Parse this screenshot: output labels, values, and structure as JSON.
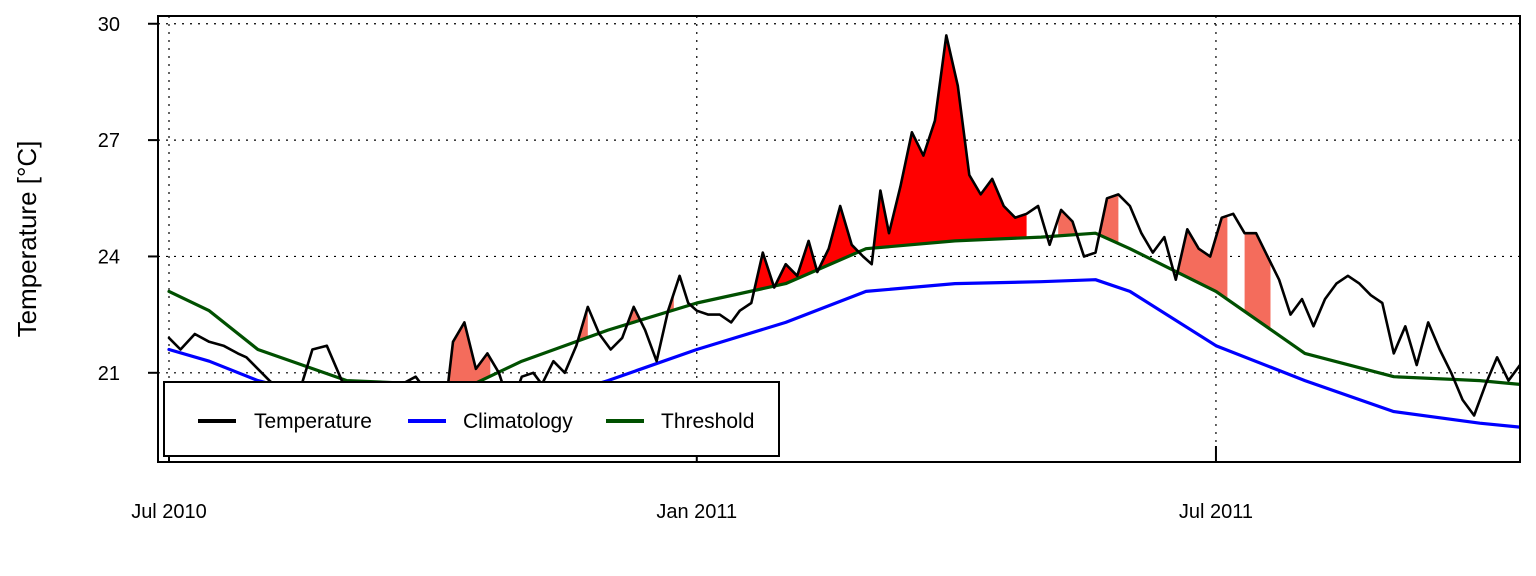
{
  "chart_data": {
    "type": "line",
    "title": "",
    "xlabel": "",
    "ylabel": "Temperature [°C]",
    "x_range": [
      "2010-07-01",
      "2011-10-15"
    ],
    "ylim": [
      18.7,
      30.2
    ],
    "y_ticks": [
      21,
      24,
      27,
      30
    ],
    "x_ticks": [
      {
        "date": "2010-07-01",
        "label": "Jul 2010"
      },
      {
        "date": "2011-01-01",
        "label": "Jan 2011"
      },
      {
        "date": "2011-07-01",
        "label": "Jul 2011"
      }
    ],
    "grid": true,
    "legend_position": "bottom-left",
    "colors": {
      "temperature": "#000000",
      "climatology": "#0000ff",
      "threshold": "#005000",
      "event_fill": "#f46c5c",
      "peak_event_fill": "#ff0000"
    },
    "series": [
      {
        "name": "Temperature",
        "key": "temperature",
        "x": [
          "2010-07-01",
          "2010-07-05",
          "2010-07-10",
          "2010-07-15",
          "2010-07-20",
          "2010-07-25",
          "2010-07-28",
          "2010-08-05",
          "2010-08-10",
          "2010-08-15",
          "2010-08-20",
          "2010-08-25",
          "2010-09-01",
          "2010-09-10",
          "2010-09-15",
          "2010-09-20",
          "2010-09-25",
          "2010-09-28",
          "2010-10-01",
          "2010-10-05",
          "2010-10-08",
          "2010-10-12",
          "2010-10-16",
          "2010-10-20",
          "2010-10-24",
          "2010-10-28",
          "2010-11-01",
          "2010-11-05",
          "2010-11-08",
          "2010-11-12",
          "2010-11-16",
          "2010-11-20",
          "2010-11-24",
          "2010-11-28",
          "2010-12-02",
          "2010-12-06",
          "2010-12-10",
          "2010-12-14",
          "2010-12-18",
          "2010-12-22",
          "2010-12-26",
          "2010-12-29",
          "2011-01-01",
          "2011-01-05",
          "2011-01-09",
          "2011-01-13",
          "2011-01-16",
          "2011-01-20",
          "2011-01-24",
          "2011-01-28",
          "2011-02-01",
          "2011-02-05",
          "2011-02-09",
          "2011-02-12",
          "2011-02-16",
          "2011-02-20",
          "2011-02-24",
          "2011-02-28",
          "2011-03-03",
          "2011-03-06",
          "2011-03-09",
          "2011-03-13",
          "2011-03-17",
          "2011-03-21",
          "2011-03-25",
          "2011-03-29",
          "2011-04-02",
          "2011-04-06",
          "2011-04-10",
          "2011-04-14",
          "2011-04-18",
          "2011-04-22",
          "2011-04-26",
          "2011-04-30",
          "2011-05-04",
          "2011-05-08",
          "2011-05-12",
          "2011-05-16",
          "2011-05-20",
          "2011-05-24",
          "2011-05-28",
          "2011-06-01",
          "2011-06-05",
          "2011-06-09",
          "2011-06-13",
          "2011-06-17",
          "2011-06-21",
          "2011-06-25",
          "2011-06-29",
          "2011-07-03",
          "2011-07-07",
          "2011-07-11",
          "2011-07-15",
          "2011-07-19",
          "2011-07-23",
          "2011-07-27",
          "2011-07-31",
          "2011-08-04",
          "2011-08-08",
          "2011-08-12",
          "2011-08-16",
          "2011-08-20",
          "2011-08-24",
          "2011-08-28",
          "2011-09-01",
          "2011-09-05",
          "2011-09-09",
          "2011-09-13",
          "2011-09-17",
          "2011-09-21",
          "2011-09-25",
          "2011-09-29",
          "2011-10-03",
          "2011-10-07",
          "2011-10-11",
          "2011-10-15"
        ],
        "values": [
          21.9,
          21.6,
          22.0,
          21.8,
          21.7,
          21.5,
          21.4,
          20.8,
          20.5,
          20.4,
          21.6,
          21.7,
          20.5,
          20.1,
          20.3,
          20.7,
          20.9,
          20.6,
          20.1,
          19.9,
          21.8,
          22.3,
          21.1,
          21.5,
          21.0,
          20.1,
          20.9,
          21.0,
          20.7,
          21.3,
          21.0,
          21.7,
          22.7,
          22.0,
          21.6,
          21.9,
          22.7,
          22.1,
          21.3,
          22.6,
          23.5,
          22.8,
          22.6,
          22.5,
          22.5,
          22.3,
          22.6,
          22.8,
          24.1,
          23.2,
          23.8,
          23.5,
          24.4,
          23.6,
          24.2,
          25.3,
          24.3,
          24.0,
          23.8,
          25.7,
          24.6,
          25.8,
          27.2,
          26.6,
          27.5,
          29.7,
          28.4,
          26.1,
          25.6,
          26.0,
          25.3,
          25.0,
          25.1,
          25.3,
          24.3,
          25.2,
          24.9,
          24.0,
          24.1,
          25.5,
          25.6,
          25.3,
          24.6,
          24.1,
          24.5,
          23.4,
          24.7,
          24.2,
          24.0,
          25.0,
          25.1,
          24.6,
          24.6,
          24.0,
          23.4,
          22.5,
          22.9,
          22.2,
          22.9,
          23.3,
          23.5,
          23.3,
          23.0,
          22.8,
          21.5,
          22.2,
          21.2,
          22.3,
          21.6,
          21.0,
          20.3,
          19.9,
          20.7,
          21.4,
          20.8,
          21.2
        ]
      },
      {
        "name": "Climatology",
        "key": "climatology",
        "x": [
          "2010-07-01",
          "2010-07-15",
          "2010-08-01",
          "2010-09-01",
          "2010-10-01",
          "2010-11-01",
          "2010-12-01",
          "2011-01-01",
          "2011-02-01",
          "2011-03-01",
          "2011-04-01",
          "2011-05-01",
          "2011-05-20",
          "2011-06-01",
          "2011-07-01",
          "2011-08-01",
          "2011-09-01",
          "2011-10-01",
          "2011-10-15"
        ],
        "values": [
          21.6,
          21.3,
          20.8,
          20.2,
          19.9,
          20.1,
          20.8,
          21.6,
          22.3,
          23.1,
          23.3,
          23.35,
          23.4,
          23.1,
          21.7,
          20.8,
          20.0,
          19.7,
          19.6
        ]
      },
      {
        "name": "Threshold",
        "key": "threshold",
        "x": [
          "2010-07-01",
          "2010-07-15",
          "2010-08-01",
          "2010-09-01",
          "2010-10-01",
          "2010-10-15",
          "2010-11-01",
          "2010-12-01",
          "2011-01-01",
          "2011-02-01",
          "2011-03-01",
          "2011-04-01",
          "2011-05-01",
          "2011-05-20",
          "2011-06-01",
          "2011-07-01",
          "2011-08-01",
          "2011-09-01",
          "2011-10-01",
          "2011-10-15"
        ],
        "values": [
          23.1,
          22.6,
          21.6,
          20.8,
          20.7,
          20.7,
          21.3,
          22.1,
          22.8,
          23.3,
          24.2,
          24.4,
          24.5,
          24.6,
          24.2,
          23.1,
          21.5,
          20.9,
          20.8,
          20.7
        ]
      }
    ],
    "events": [
      {
        "start": "2010-10-06",
        "end": "2010-10-21",
        "severity": "moderate"
      },
      {
        "start": "2010-10-27",
        "end": "2010-11-13",
        "severity": "moderate"
      },
      {
        "start": "2010-11-16",
        "end": "2010-11-24",
        "severity": "moderate"
      },
      {
        "start": "2010-11-28",
        "end": "2010-12-03",
        "severity": "moderate"
      },
      {
        "start": "2010-12-07",
        "end": "2010-12-24",
        "severity": "moderate"
      },
      {
        "start": "2011-01-07",
        "end": "2011-04-26",
        "severity": "strong"
      },
      {
        "start": "2011-05-07",
        "end": "2011-05-28",
        "severity": "moderate"
      },
      {
        "start": "2011-06-16",
        "end": "2011-07-05",
        "severity": "moderate"
      },
      {
        "start": "2011-07-11",
        "end": "2011-07-20",
        "severity": "moderate"
      },
      {
        "start": "2011-09-23",
        "end": "2011-09-28",
        "severity": "moderate"
      }
    ]
  },
  "legend": {
    "items": [
      {
        "label": "Temperature",
        "color": "#000000"
      },
      {
        "label": "Climatology",
        "color": "#0000ff"
      },
      {
        "label": "Threshold",
        "color": "#005000"
      }
    ]
  }
}
